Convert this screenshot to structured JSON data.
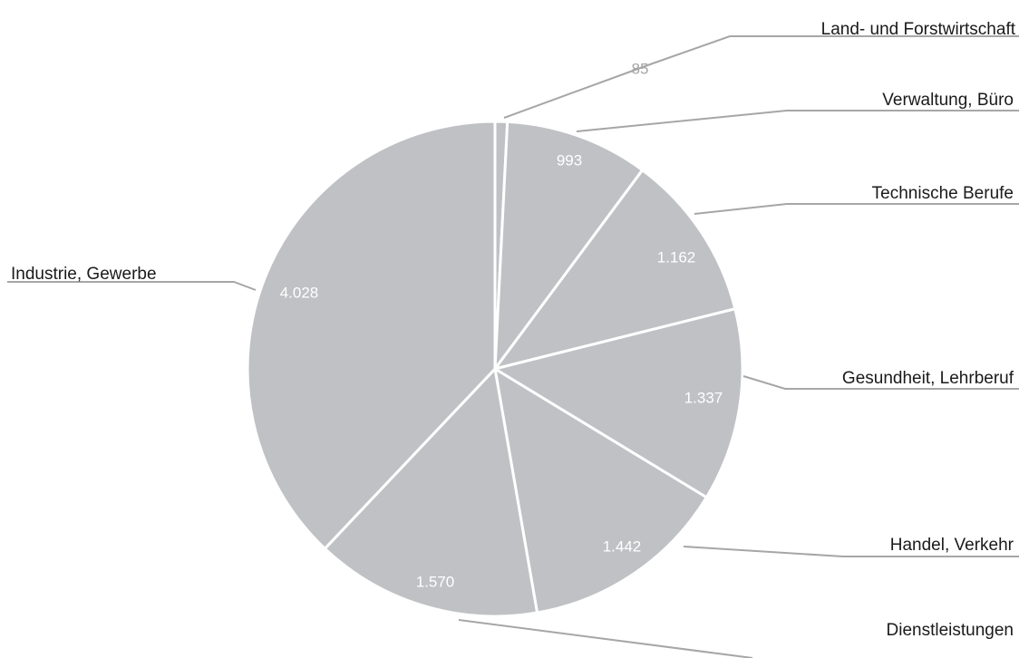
{
  "chart_data": {
    "type": "pie",
    "title": "",
    "categories": [
      "Land- und Forstwirtschaft",
      "Verwaltung, Büro",
      "Technische Berufe",
      "Gesundheit, Lehrberuf",
      "Handel, Verkehr",
      "Dienstleistungen",
      "Industrie, Gewerbe"
    ],
    "values": [
      85,
      993,
      1162,
      1337,
      1442,
      1570,
      4028
    ],
    "value_labels": [
      "85",
      "993",
      "1.162",
      "1.337",
      "1.442",
      "1.570",
      "4.028"
    ],
    "colors": {
      "slice": "#bfc1c4",
      "separator": "#ffffff",
      "leader_line": "#a6a6a6",
      "value_label_inside": "#ffffff",
      "value_label_outside": "#a6a6a6",
      "category_label": "#1a1a1a"
    },
    "legend": "none"
  }
}
